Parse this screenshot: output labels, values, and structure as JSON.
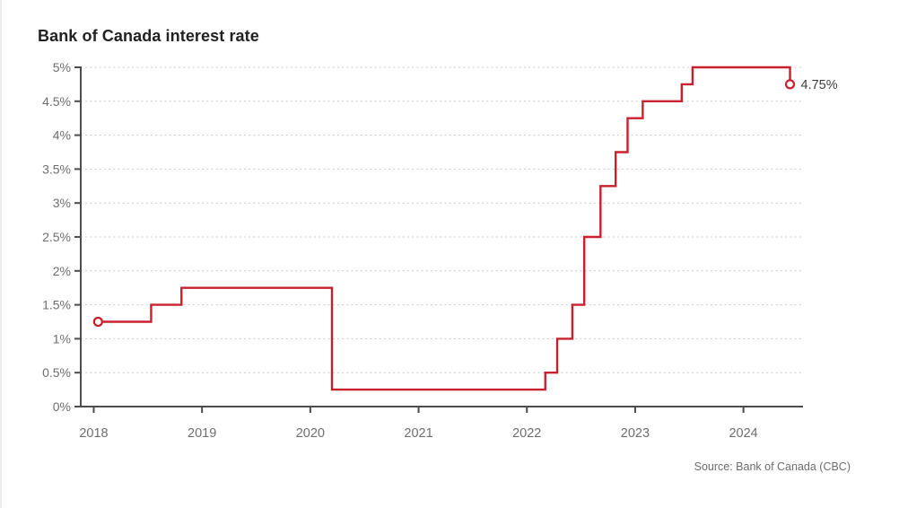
{
  "header": {
    "title": "Bank of Canada interest rate"
  },
  "footer": {
    "source_label": "Source: Bank of Canada (CBC)"
  },
  "colors": {
    "line": "#c9202e",
    "axis": "#4d4d4d",
    "grid": "#bcc7d1",
    "tick_label": "#6e6e6e",
    "title_text": "#222222",
    "annotation": "#3c3c3c",
    "source_text": "#6d6d6d",
    "marker_fill": "#ffffff"
  },
  "chart_data": {
    "type": "line",
    "subtype": "step-after",
    "title": "Bank of Canada interest rate",
    "xlabel": "",
    "ylabel": "",
    "x_range": [
      2017.88,
      2024.55
    ],
    "y_range": [
      0,
      5
    ],
    "grid": {
      "horizontal": true,
      "vertical": false,
      "style": "dotted"
    },
    "legend": "none",
    "x_ticks": [
      {
        "v": 2018,
        "label": "2018"
      },
      {
        "v": 2019,
        "label": "2019"
      },
      {
        "v": 2020,
        "label": "2020"
      },
      {
        "v": 2021,
        "label": "2021"
      },
      {
        "v": 2022,
        "label": "2022"
      },
      {
        "v": 2023,
        "label": "2023"
      },
      {
        "v": 2024,
        "label": "2024"
      }
    ],
    "y_ticks": [
      {
        "v": 0,
        "label": "0%"
      },
      {
        "v": 0.5,
        "label": "0.5%"
      },
      {
        "v": 1,
        "label": "1%"
      },
      {
        "v": 1.5,
        "label": "1.5%"
      },
      {
        "v": 2,
        "label": "2%"
      },
      {
        "v": 2.5,
        "label": "2.5%"
      },
      {
        "v": 3,
        "label": "3%"
      },
      {
        "v": 3.5,
        "label": "3.5%"
      },
      {
        "v": 4,
        "label": "4%"
      },
      {
        "v": 4.5,
        "label": "4.5%"
      },
      {
        "v": 5,
        "label": "5%"
      }
    ],
    "series": [
      {
        "name": "Bank of Canada interest rate",
        "color": "#c9202e",
        "markers": {
          "first": "open-circle",
          "last": "open-circle"
        },
        "points": [
          {
            "x": 2018.04,
            "y": 1.25
          },
          {
            "x": 2018.53,
            "y": 1.5
          },
          {
            "x": 2018.81,
            "y": 1.75
          },
          {
            "x": 2020.2,
            "y": 0.25
          },
          {
            "x": 2022.17,
            "y": 0.5
          },
          {
            "x": 2022.28,
            "y": 1.0
          },
          {
            "x": 2022.42,
            "y": 1.5
          },
          {
            "x": 2022.53,
            "y": 2.5
          },
          {
            "x": 2022.68,
            "y": 3.25
          },
          {
            "x": 2022.82,
            "y": 3.75
          },
          {
            "x": 2022.93,
            "y": 4.25
          },
          {
            "x": 2023.07,
            "y": 4.5
          },
          {
            "x": 2023.43,
            "y": 4.75
          },
          {
            "x": 2023.53,
            "y": 5.0
          },
          {
            "x": 2024.43,
            "y": 4.75
          }
        ]
      }
    ],
    "end_label": "4.75%",
    "start_value_pct": 1.25,
    "end_value_pct": 4.75
  }
}
